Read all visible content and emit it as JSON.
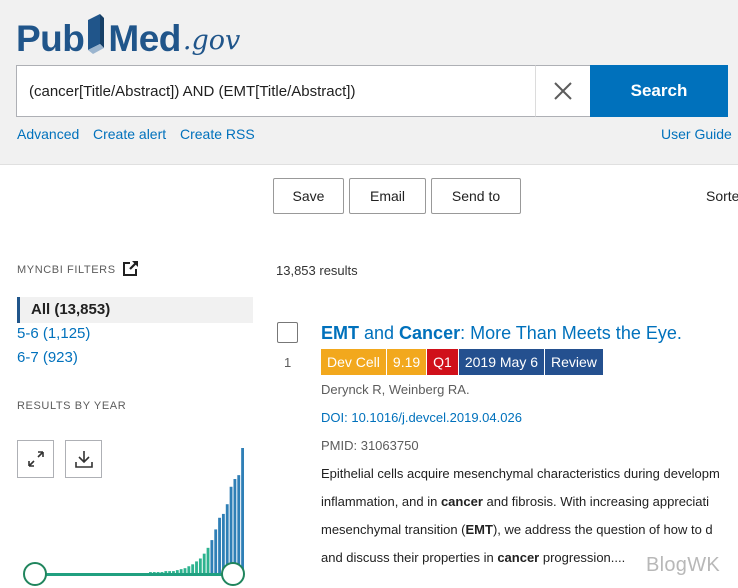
{
  "logo": {
    "part1": "Pub",
    "part2": "Med",
    "suffix": ".gov"
  },
  "search": {
    "value": "(cancer[Title/Abstract]) AND (EMT[Title/Abstract])",
    "button": "Search"
  },
  "links": {
    "advanced": "Advanced",
    "create_alert": "Create alert",
    "create_rss": "Create RSS",
    "user_guide": "User Guide"
  },
  "actions": {
    "save": "Save",
    "email": "Email",
    "send_to": "Send to",
    "sort": "Sorte"
  },
  "sidebar": {
    "myncbi_filters_title": "MYNCBI FILTERS",
    "filters": [
      {
        "label": "All (13,853)",
        "active": true
      },
      {
        "label": "5-6 (1,125)",
        "active": false
      },
      {
        "label": "6-7 (923)",
        "active": false
      }
    ],
    "results_by_year_title": "RESULTS BY YEAR"
  },
  "results": {
    "count_text": "13,853 results",
    "items": [
      {
        "number": "1",
        "title_parts": [
          "EMT",
          " and ",
          "Cancer",
          ": More Than Meets the Eye."
        ],
        "badges": [
          {
            "text": "Dev Cell",
            "color": "#f2a81d"
          },
          {
            "text": "9.19",
            "color": "#f2a81d"
          },
          {
            "text": "Q1",
            "color": "#d0101a"
          },
          {
            "text": "2019 May 6",
            "color": "#24508f"
          },
          {
            "text": "Review",
            "color": "#24508f"
          }
        ],
        "authors": "Derynck R, Weinberg RA.",
        "doi": "DOI: 10.1016/j.devcel.2019.04.026",
        "pmid": "PMID: 31063750",
        "snippet_lines": [
          [
            "Epithelial cells acquire mesenchymal characteristics during developm"
          ],
          [
            "inflammation, and in ",
            "cancer",
            " and fibrosis. With increasing appreciati"
          ],
          [
            "mesenchymal transition (",
            "EMT",
            "), we address the question of how to d"
          ],
          [
            "and discuss their properties in ",
            "cancer",
            " progression...."
          ]
        ]
      }
    ]
  },
  "histogram": {
    "values": [
      1,
      1,
      1,
      1,
      1,
      1,
      1,
      1,
      1,
      1,
      1,
      1,
      1,
      1,
      1,
      1,
      1,
      1,
      1,
      1,
      1,
      1,
      1,
      1,
      1,
      1,
      1,
      1,
      1,
      1,
      1,
      2,
      2,
      2,
      2,
      3,
      3,
      3,
      4,
      5,
      6,
      8,
      10,
      13,
      16,
      21,
      27,
      35,
      46,
      58,
      62,
      72,
      90,
      98,
      102,
      130
    ]
  },
  "watermark": "BlogWK"
}
